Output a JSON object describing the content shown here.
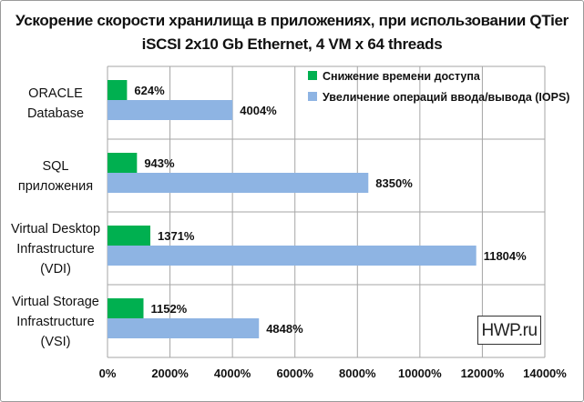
{
  "chart_data": {
    "type": "bar",
    "orientation": "horizontal",
    "title_line1": "Ускорение скорости хранилища в приложениях, при использовании QTier",
    "title_line2": "iSCSI 2x10 Gb Ethernet, 4 VM x 64 threads",
    "categories": [
      [
        "ORACLE",
        "Database"
      ],
      [
        "SQL",
        "приложения"
      ],
      [
        "Virtual Desktop",
        "Infrastructure",
        "(VDI)"
      ],
      [
        "Virtual Storage",
        "Infrastructure",
        "(VSI)"
      ]
    ],
    "series": [
      {
        "name": "Снижение времени доступа",
        "color": "#00b050",
        "values": [
          624,
          943,
          1371,
          1152
        ],
        "labels": [
          "624%",
          "943%",
          "1371%",
          "1152%"
        ]
      },
      {
        "name": "Увеличение операций ввода/вывода (IOPS)",
        "color": "#8eb4e3",
        "values": [
          4004,
          8350,
          11804,
          4848
        ],
        "labels": [
          "4004%",
          "8350%",
          "11804%",
          "4848%"
        ]
      }
    ],
    "xlim": [
      0,
      14000
    ],
    "xticks": [
      "0%",
      "2000%",
      "4000%",
      "6000%",
      "8000%",
      "10000%",
      "12000%",
      "14000%"
    ],
    "grid": true,
    "legend_position": "top-right"
  },
  "watermark": "HWP.ru"
}
